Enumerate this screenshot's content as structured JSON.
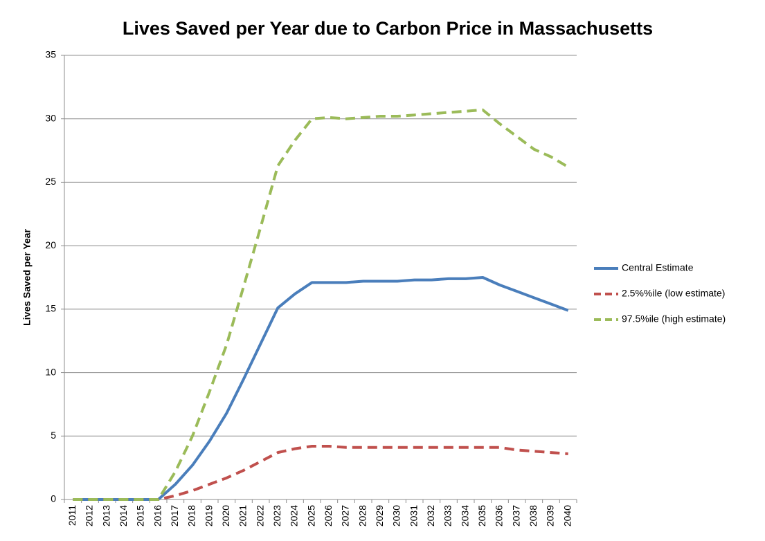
{
  "chart_data": {
    "type": "line",
    "title": "Lives Saved per Year due to Carbon Price in Massachusetts",
    "y_label": "Lives Saved per Year",
    "categories": [
      "2011",
      "2012",
      "2013",
      "2014",
      "2015",
      "2016",
      "2017",
      "2018",
      "2019",
      "2020",
      "2021",
      "2022",
      "2023",
      "2024",
      "2025",
      "2026",
      "2027",
      "2028",
      "2029",
      "2030",
      "2031",
      "2032",
      "2033",
      "2034",
      "2035",
      "2036",
      "2037",
      "2038",
      "2039",
      "2040"
    ],
    "series": [
      {
        "name": "Central Estimate",
        "color": "#4a7ebb",
        "dashed": false,
        "values": [
          0,
          0,
          0,
          0,
          0,
          0,
          1.2,
          2.7,
          4.6,
          6.8,
          9.5,
          12.3,
          15.1,
          16.2,
          17.1,
          17.1,
          17.1,
          17.2,
          17.2,
          17.2,
          17.3,
          17.3,
          17.4,
          17.4,
          17.5,
          16.9,
          16.4,
          15.9,
          15.4,
          14.9
        ]
      },
      {
        "name": "2.5%%ile (low estimate)",
        "color": "#c0504d",
        "dashed": true,
        "values": [
          0,
          0,
          0,
          0,
          0,
          0,
          0.3,
          0.7,
          1.2,
          1.7,
          2.3,
          3.0,
          3.7,
          4.0,
          4.2,
          4.2,
          4.1,
          4.1,
          4.1,
          4.1,
          4.1,
          4.1,
          4.1,
          4.1,
          4.1,
          4.1,
          3.9,
          3.8,
          3.7,
          3.6
        ]
      },
      {
        "name": "97.5%ile (high estimate)",
        "color": "#9bbb59",
        "dashed": true,
        "values": [
          0,
          0,
          0,
          0,
          0,
          0,
          2.2,
          5.0,
          8.5,
          12.2,
          16.8,
          21.5,
          26.3,
          28.3,
          30.0,
          30.1,
          30.0,
          30.1,
          30.2,
          30.2,
          30.3,
          30.4,
          30.5,
          30.6,
          30.7,
          29.6,
          28.6,
          27.6,
          27.0,
          26.2
        ]
      }
    ],
    "ylim": [
      0,
      35
    ],
    "yticks": [
      0,
      5,
      10,
      15,
      20,
      25,
      30,
      35
    ],
    "grid": true,
    "legend": "right"
  }
}
